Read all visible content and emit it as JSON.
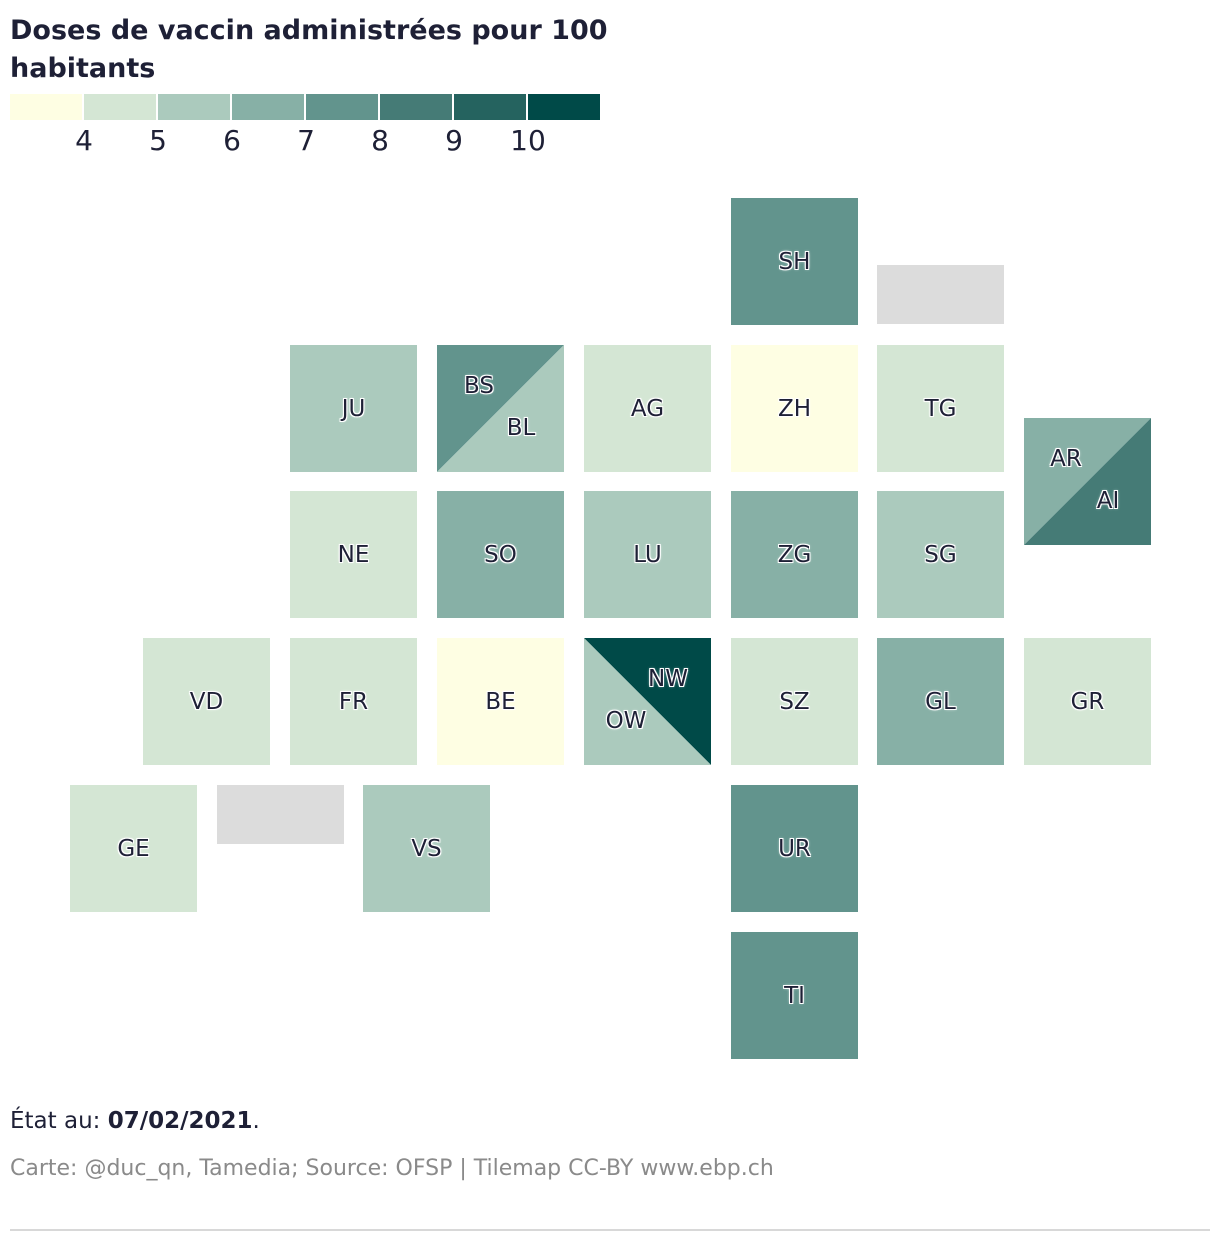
{
  "title": "Doses de vaccin administrées pour 100 habitants",
  "legend": {
    "colors": [
      "#fefee3",
      "#d4e6d4",
      "#abcabd",
      "#87b0a6",
      "#62948d",
      "#457b76",
      "#25635f",
      "#004a48"
    ],
    "ticks": [
      "4",
      "5",
      "6",
      "7",
      "8",
      "9",
      "10"
    ]
  },
  "chart_data": {
    "type": "tilemap",
    "metric": "Doses de vaccin administrées pour 100 habitants",
    "bins": [
      {
        "range": "<4",
        "color": "#fefee3"
      },
      {
        "range": "4-5",
        "color": "#d4e6d4"
      },
      {
        "range": "5-6",
        "color": "#abcabd"
      },
      {
        "range": "6-7",
        "color": "#87b0a6"
      },
      {
        "range": "7-8",
        "color": "#62948d"
      },
      {
        "range": "8-9",
        "color": "#457b76"
      },
      {
        "range": "9-10",
        "color": "#25635f"
      },
      {
        "range": ">10",
        "color": "#004a48"
      }
    ],
    "cantons": [
      {
        "code": "SH",
        "bin": 4
      },
      {
        "code": "JU",
        "bin": 2
      },
      {
        "code": "BS",
        "bin": 4
      },
      {
        "code": "BL",
        "bin": 2
      },
      {
        "code": "AG",
        "bin": 1
      },
      {
        "code": "ZH",
        "bin": 0
      },
      {
        "code": "TG",
        "bin": 1
      },
      {
        "code": "AR",
        "bin": 3
      },
      {
        "code": "AI",
        "bin": 5
      },
      {
        "code": "NE",
        "bin": 1
      },
      {
        "code": "SO",
        "bin": 3
      },
      {
        "code": "LU",
        "bin": 2
      },
      {
        "code": "ZG",
        "bin": 3
      },
      {
        "code": "SG",
        "bin": 2
      },
      {
        "code": "VD",
        "bin": 1
      },
      {
        "code": "FR",
        "bin": 1
      },
      {
        "code": "BE",
        "bin": 0
      },
      {
        "code": "NW",
        "bin": 7
      },
      {
        "code": "OW",
        "bin": 2
      },
      {
        "code": "SZ",
        "bin": 1
      },
      {
        "code": "GL",
        "bin": 3
      },
      {
        "code": "GR",
        "bin": 1
      },
      {
        "code": "GE",
        "bin": 1
      },
      {
        "code": "VS",
        "bin": 2
      },
      {
        "code": "UR",
        "bin": 4
      },
      {
        "code": "TI",
        "bin": 4
      }
    ]
  },
  "footer": {
    "date_prefix": "État au: ",
    "date": "07/02/2021",
    "date_suffix": ".",
    "source": "Carte: @duc_qn, Tamedia; Source: OFSP | Tilemap CC-BY www.ebp.ch"
  }
}
